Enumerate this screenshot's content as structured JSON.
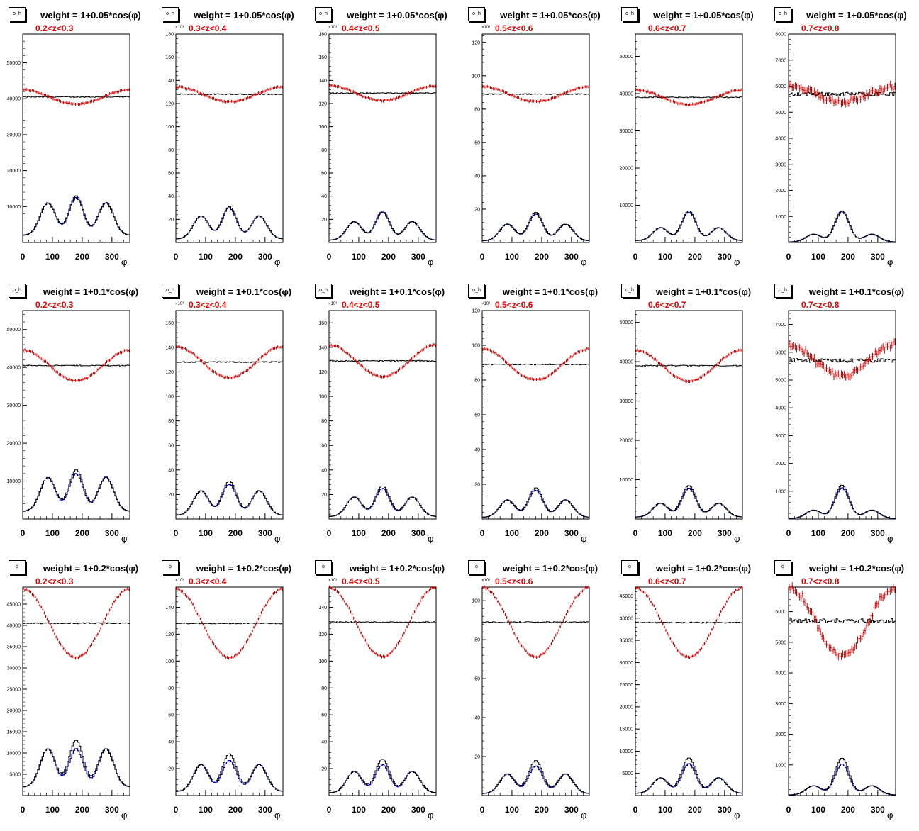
{
  "axis_title_x": "φ",
  "exponent_label": "×10³",
  "colors": {
    "reconstructed": "#cc0000",
    "generated": "#000000",
    "accepted": "#000099",
    "frame": "#000000"
  },
  "rows": [
    {
      "title": "weight = 1+0.05*cos(φ)",
      "stat_label": "o_h",
      "amplitude": 0.05
    },
    {
      "title": "weight = 1+0.1*cos(φ)",
      "stat_label": "o_h",
      "amplitude": 0.1
    },
    {
      "title": "weight = 1+0.2*cos(φ)",
      "stat_label": "o",
      "amplitude": 0.2
    }
  ],
  "columns": [
    {
      "z_label": "0.2<z<0.3",
      "flat_level": 40500,
      "use_exponent": false,
      "bump_peaks": [
        9000,
        11000,
        9000
      ],
      "bump_edge": 2000,
      "row_ymax": [
        58000,
        55000,
        49000
      ],
      "row_yticks": [
        [
          10000,
          20000,
          30000,
          40000,
          50000
        ],
        [
          10000,
          20000,
          30000,
          40000,
          50000
        ],
        [
          5000,
          10000,
          15000,
          20000,
          25000,
          30000,
          35000,
          40000,
          45000
        ]
      ]
    },
    {
      "z_label": "0.3<z<0.4",
      "flat_level": 128,
      "use_exponent": true,
      "bump_peaks": [
        20,
        28,
        20
      ],
      "bump_edge": 3,
      "row_ymax": [
        180,
        170,
        155
      ],
      "row_yticks": [
        [
          20,
          40,
          60,
          80,
          100,
          120,
          140,
          160,
          180
        ],
        [
          20,
          40,
          60,
          80,
          100,
          120,
          140,
          160
        ],
        [
          20,
          40,
          60,
          80,
          100,
          120,
          140
        ]
      ]
    },
    {
      "z_label": "0.4<z<0.5",
      "flat_level": 129,
      "use_exponent": true,
      "bump_peaks": [
        16,
        25,
        16
      ],
      "bump_edge": 2,
      "row_ymax": [
        180,
        170,
        155
      ],
      "row_yticks": [
        [
          20,
          40,
          60,
          80,
          100,
          120,
          140,
          160,
          180
        ],
        [
          20,
          40,
          60,
          80,
          100,
          120,
          140,
          160
        ],
        [
          20,
          40,
          60,
          80,
          100,
          120,
          140
        ]
      ]
    },
    {
      "z_label": "0.5<z<0.6",
      "flat_level": 89,
      "use_exponent": true,
      "bump_peaks": [
        10,
        17,
        10
      ],
      "bump_edge": 1,
      "row_ymax": [
        125,
        120,
        107
      ],
      "row_yticks": [
        [
          20,
          40,
          60,
          80,
          100,
          120
        ],
        [
          20,
          40,
          60,
          80,
          100,
          120
        ],
        [
          20,
          40,
          60,
          80,
          100
        ]
      ]
    },
    {
      "z_label": "0.6<z<0.7",
      "flat_level": 39000,
      "use_exponent": false,
      "bump_peaks": [
        3500,
        8000,
        3500
      ],
      "bump_edge": 500,
      "row_ymax": [
        56000,
        53000,
        47000
      ],
      "row_yticks": [
        [
          10000,
          20000,
          30000,
          40000,
          50000
        ],
        [
          10000,
          20000,
          30000,
          40000,
          50000
        ],
        [
          5000,
          10000,
          15000,
          20000,
          25000,
          30000,
          35000,
          40000,
          45000
        ]
      ]
    },
    {
      "z_label": "0.7<z<0.8",
      "flat_level": 5700,
      "use_exponent": false,
      "bump_peaks": [
        300,
        1200,
        300
      ],
      "bump_edge": 20,
      "row_ymax": [
        8000,
        7500,
        6800
      ],
      "row_yticks": [
        [
          1000,
          2000,
          3000,
          4000,
          5000,
          6000,
          7000,
          8000
        ],
        [
          1000,
          2000,
          3000,
          4000,
          5000,
          6000,
          7000
        ],
        [
          1000,
          2000,
          3000,
          4000,
          5000,
          6000
        ]
      ]
    }
  ],
  "chart_data": {
    "type": "histogram-grid",
    "xlabel": "φ",
    "xlim": [
      0,
      360
    ],
    "x_ticks": [
      0,
      100,
      200,
      300
    ],
    "n_bins": 72,
    "series": [
      {
        "name": "",
        "description_shape": "flat",
        "color": "#000000"
      },
      {
        "name": "",
        "description_shape": "weighted",
        "color": "#cc0000"
      },
      {
        "name": "",
        "description_shape": "bumps",
        "color": "#000000"
      },
      {
        "name": "",
        "description_shape": "bumps_weighted",
        "color": "#000099"
      }
    ]
  }
}
